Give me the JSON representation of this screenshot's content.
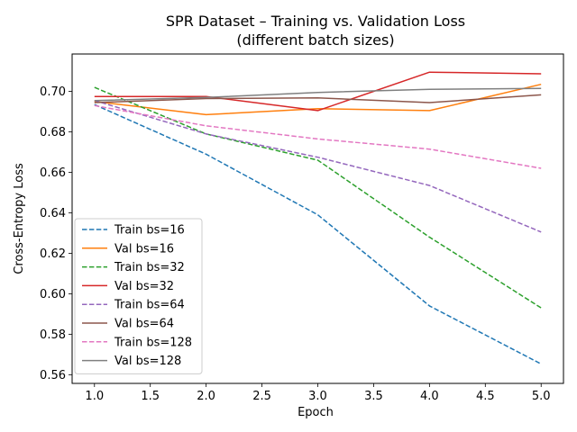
{
  "chart_data": {
    "type": "line",
    "title": "SPR Dataset – Training vs. Validation Loss",
    "subtitle": "(different batch sizes)",
    "xlabel": "Epoch",
    "ylabel": "Cross-Entropy Loss",
    "xlim": [
      0.8,
      5.2
    ],
    "ylim": [
      0.5557,
      0.7185
    ],
    "xticks": [
      1.0,
      1.5,
      2.0,
      2.5,
      3.0,
      3.5,
      4.0,
      4.5,
      5.0
    ],
    "xtick_labels": [
      "1.0",
      "1.5",
      "2.0",
      "2.5",
      "3.0",
      "3.5",
      "4.0",
      "4.5",
      "5.0"
    ],
    "yticks": [
      0.56,
      0.58,
      0.6,
      0.62,
      0.64,
      0.66,
      0.68,
      0.7
    ],
    "ytick_labels": [
      "0.56",
      "0.58",
      "0.60",
      "0.62",
      "0.64",
      "0.66",
      "0.68",
      "0.70"
    ],
    "grid": false,
    "legend_position": "lower-left",
    "x": [
      1,
      2,
      3,
      4,
      5
    ],
    "series": [
      {
        "name": "Train bs=16",
        "color": "#1f77b4",
        "dash": true,
        "values": [
          0.6935,
          0.669,
          0.639,
          0.594,
          0.5653
        ]
      },
      {
        "name": "Val bs=16",
        "color": "#ff7f0e",
        "dash": false,
        "values": [
          0.695,
          0.6885,
          0.6915,
          0.6905,
          0.7035
        ]
      },
      {
        "name": "Train bs=32",
        "color": "#2ca02c",
        "dash": true,
        "values": [
          0.702,
          0.679,
          0.666,
          0.628,
          0.593
        ]
      },
      {
        "name": "Val bs=32",
        "color": "#d62728",
        "dash": false,
        "values": [
          0.6975,
          0.6975,
          0.6905,
          0.7095,
          0.7087
        ]
      },
      {
        "name": "Train bs=64",
        "color": "#9467bd",
        "dash": true,
        "values": [
          0.6955,
          0.679,
          0.6675,
          0.6535,
          0.6305
        ]
      },
      {
        "name": "Val bs=64",
        "color": "#8c564b",
        "dash": false,
        "values": [
          0.6945,
          0.6965,
          0.6968,
          0.6945,
          0.6983
        ]
      },
      {
        "name": "Train bs=128",
        "color": "#e377c2",
        "dash": true,
        "values": [
          0.693,
          0.683,
          0.6765,
          0.6715,
          0.662
        ]
      },
      {
        "name": "Val bs=128",
        "color": "#7f7f7f",
        "dash": false,
        "values": [
          0.6955,
          0.697,
          0.6995,
          0.701,
          0.7015
        ]
      }
    ]
  }
}
